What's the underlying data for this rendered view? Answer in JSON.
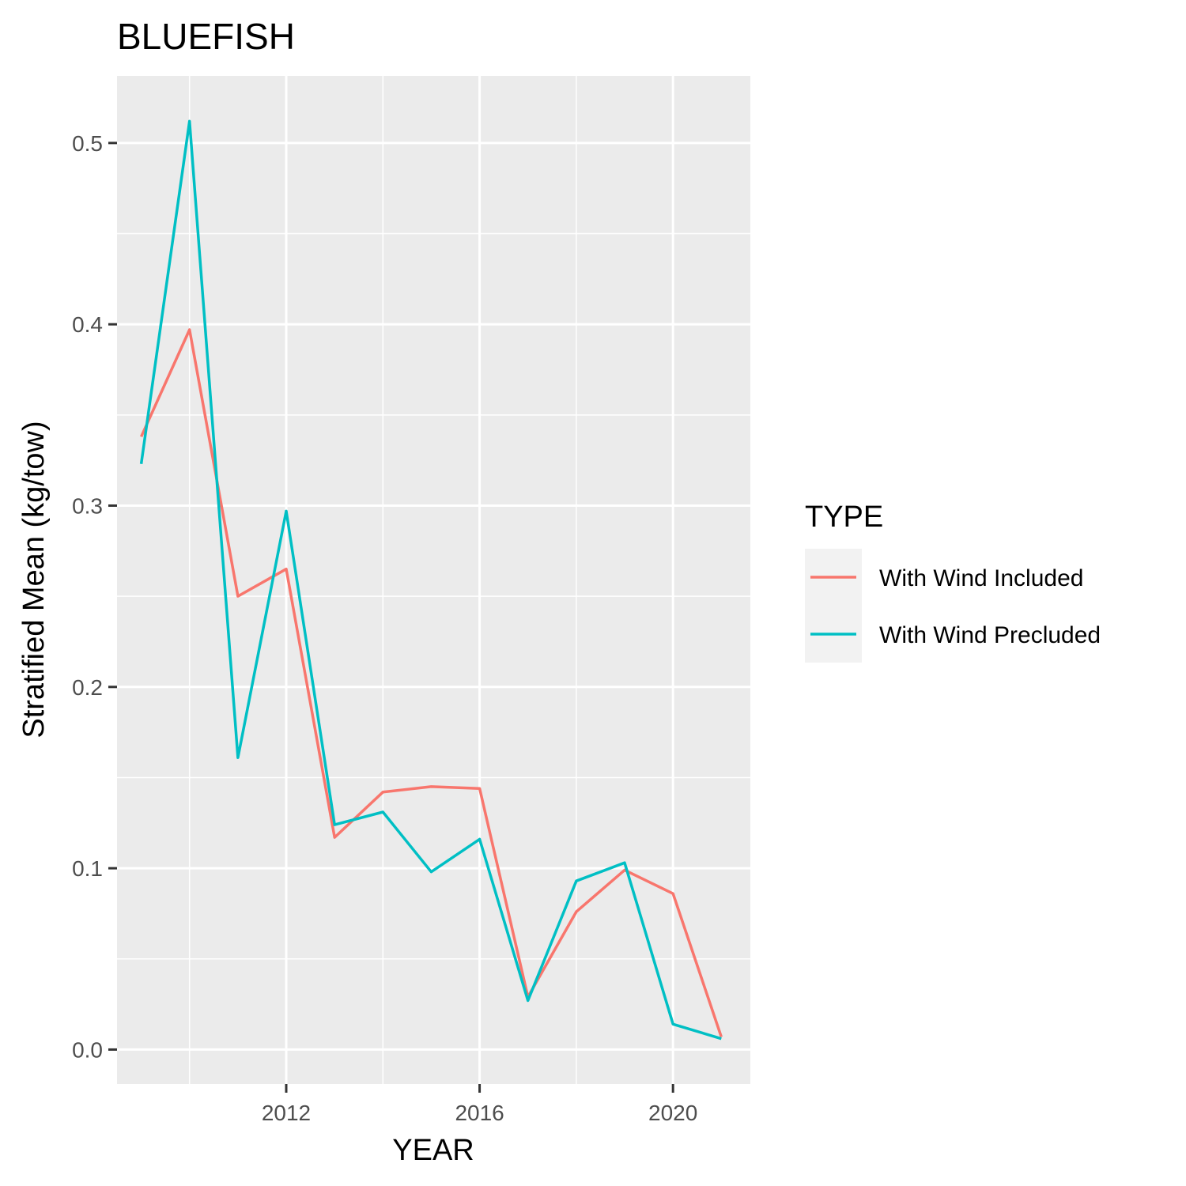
{
  "chart_data": {
    "type": "line",
    "title": "BLUEFISH",
    "xlabel": "YEAR",
    "ylabel": "Stratified Mean (kg/tow)",
    "x": [
      2009,
      2010,
      2011,
      2012,
      2013,
      2014,
      2015,
      2016,
      2017,
      2018,
      2019,
      2020,
      2021
    ],
    "xlim": [
      2008.5,
      2021.6
    ],
    "ylim": [
      -0.019,
      0.537
    ],
    "x_ticks": [
      2012,
      2016,
      2020
    ],
    "x_minor_ticks": [
      2010,
      2014,
      2018
    ],
    "y_ticks": [
      0.0,
      0.1,
      0.2,
      0.3,
      0.4,
      0.5
    ],
    "y_tick_labels": [
      "0.0",
      "0.1",
      "0.2",
      "0.3",
      "0.4",
      "0.5"
    ],
    "grid": true,
    "legend_position": "right",
    "legend_title": "TYPE",
    "series": [
      {
        "name": "With Wind Included",
        "color": "#F8766D",
        "values": [
          0.338,
          0.397,
          0.25,
          0.265,
          0.117,
          0.142,
          0.145,
          0.144,
          0.029,
          0.076,
          0.099,
          0.086,
          0.007
        ]
      },
      {
        "name": "With Wind Precluded",
        "color": "#00BFC4",
        "values": [
          0.323,
          0.512,
          0.161,
          0.297,
          0.124,
          0.131,
          0.098,
          0.116,
          0.027,
          0.093,
          0.103,
          0.014,
          0.006
        ]
      }
    ]
  }
}
